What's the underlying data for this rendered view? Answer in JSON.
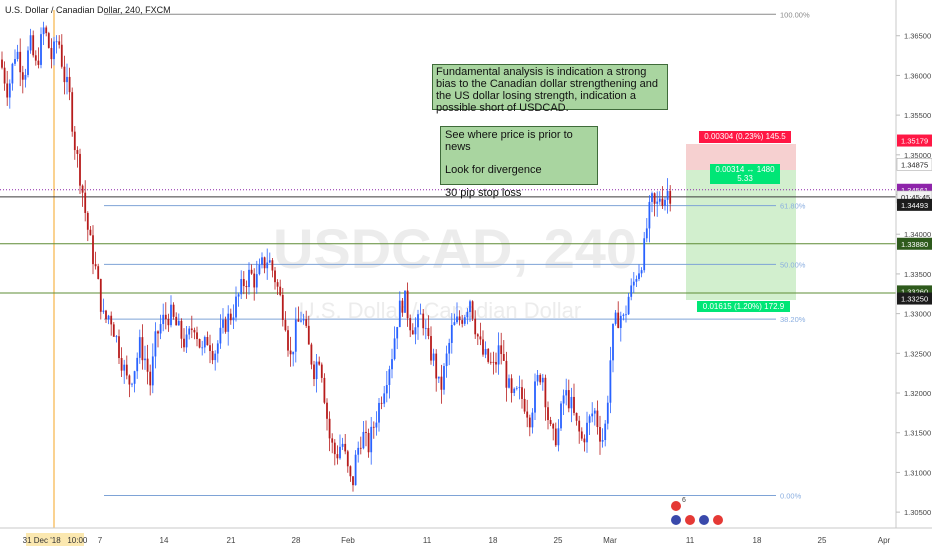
{
  "header": {
    "symbol_title": "U.S. Dollar / Canadian Dollar, 240, FXCM"
  },
  "watermark": {
    "main": "USDCAD, 240",
    "sub": "U.S. Dollar / Canadian Dollar"
  },
  "annotations": {
    "fundamental": "Fundamental analysis is indication a strong bias to the Canadian dollar strengthening and the US dollar losing strength, indication a possible short of USDCAD.",
    "checklist": [
      "See where price is prior to news",
      "Look for divergence",
      "30 pip stop loss"
    ]
  },
  "position": {
    "stop_label": "0.00304 (0.23%) 145.5",
    "entry_label_line1": "0.00314 ↔ 1480",
    "entry_label_line2": "5.33",
    "target_label": "0.01615 (1.20%) 172.9",
    "entry": 1.3487,
    "stop": 1.3518,
    "target": 1.3325
  },
  "colors": {
    "bull": "#2962ff",
    "bear": "#b71c1c",
    "fib": "#7ea3d6",
    "fib_label": "#8aaee0",
    "green_line": "#5e8c35",
    "purple_line": "#8e24aa",
    "red_tag": "#ff1744",
    "green_tag": "#00e676",
    "profit_zone": "#d2efce",
    "loss_zone": "#f6d0d0"
  },
  "chart_data": {
    "type": "candlestick",
    "ylim": [
      1.303,
      1.3695
    ],
    "y_ticks": [
      1.305,
      1.31,
      1.315,
      1.32,
      1.325,
      1.33,
      1.335,
      1.34,
      1.345,
      1.35,
      1.355,
      1.36,
      1.365
    ],
    "x_ticks": [
      "7",
      "14",
      "21",
      "28",
      "Feb",
      "11",
      "18",
      "25",
      "Mar",
      "11",
      "18",
      "25",
      "Apr"
    ],
    "x_marker_label": "31 Dec '18   10:00",
    "fib_levels": [
      {
        "label": "100.00%",
        "price": 1.3677
      },
      {
        "label": "61.80%",
        "price": 1.3436
      },
      {
        "label": "50.00%",
        "price": 1.3362
      },
      {
        "label": "38.20%",
        "price": 1.3293
      },
      {
        "label": "0.00%",
        "price": 1.3071
      }
    ],
    "horizontal_lines": [
      {
        "price": 1.3456,
        "style": "purple-dotted"
      },
      {
        "price": 1.3388,
        "style": "green"
      },
      {
        "price": 1.3326,
        "style": "green"
      }
    ],
    "price_tags": [
      {
        "label": "1.35179",
        "price": 1.3518,
        "color": "#ff1744"
      },
      {
        "label": "1.34875",
        "price": 1.3488,
        "color": "#ffffff"
      },
      {
        "label": "1.34561",
        "price": 1.3456,
        "color": "#8e24aa"
      },
      {
        "label": "01:45:45",
        "price": 1.3447,
        "color": "#f2f2f2"
      },
      {
        "label": "1.34493",
        "price": 1.3437,
        "color": "#1c1c1c"
      },
      {
        "label": "1.33880",
        "price": 1.3388,
        "color": "#2e5a1c"
      },
      {
        "label": "1.33260",
        "price": 1.3328,
        "color": "#2e5a1c"
      },
      {
        "label": "1.33250",
        "price": 1.3319,
        "color": "#1c1c1c"
      }
    ],
    "price_path": [
      [
        0,
        1.362
      ],
      [
        8,
        1.358
      ],
      [
        16,
        1.3635
      ],
      [
        24,
        1.36
      ],
      [
        30,
        1.364
      ],
      [
        36,
        1.361
      ],
      [
        44,
        1.366
      ],
      [
        52,
        1.362
      ],
      [
        58,
        1.365
      ],
      [
        64,
        1.36
      ],
      [
        70,
        1.357
      ],
      [
        74,
        1.352
      ],
      [
        78,
        1.349
      ],
      [
        82,
        1.346
      ],
      [
        86,
        1.342
      ],
      [
        90,
        1.339
      ],
      [
        95,
        1.336
      ],
      [
        100,
        1.332
      ],
      [
        104,
        1.329
      ],
      [
        110,
        1.33
      ],
      [
        116,
        1.327
      ],
      [
        122,
        1.324
      ],
      [
        128,
        1.321
      ],
      [
        134,
        1.323
      ],
      [
        140,
        1.326
      ],
      [
        146,
        1.324
      ],
      [
        150,
        1.321
      ],
      [
        156,
        1.327
      ],
      [
        162,
        1.329
      ],
      [
        170,
        1.33
      ],
      [
        178,
        1.328
      ],
      [
        186,
        1.326
      ],
      [
        194,
        1.329
      ],
      [
        202,
        1.325
      ],
      [
        208,
        1.327
      ],
      [
        214,
        1.325
      ],
      [
        220,
        1.327
      ],
      [
        226,
        1.329
      ],
      [
        232,
        1.33
      ],
      [
        238,
        1.332
      ],
      [
        244,
        1.334
      ],
      [
        250,
        1.335
      ],
      [
        256,
        1.334
      ],
      [
        262,
        1.336
      ],
      [
        268,
        1.337
      ],
      [
        274,
        1.335
      ],
      [
        280,
        1.332
      ],
      [
        286,
        1.329
      ],
      [
        290,
        1.324
      ],
      [
        296,
        1.328
      ],
      [
        302,
        1.33
      ],
      [
        308,
        1.326
      ],
      [
        314,
        1.323
      ],
      [
        320,
        1.325
      ],
      [
        326,
        1.318
      ],
      [
        330,
        1.314
      ],
      [
        336,
        1.312
      ],
      [
        342,
        1.314
      ],
      [
        348,
        1.31
      ],
      [
        352,
        1.308
      ],
      [
        356,
        1.312
      ],
      [
        362,
        1.315
      ],
      [
        368,
        1.313
      ],
      [
        374,
        1.316
      ],
      [
        380,
        1.319
      ],
      [
        386,
        1.322
      ],
      [
        392,
        1.325
      ],
      [
        398,
        1.33
      ],
      [
        404,
        1.332
      ],
      [
        410,
        1.329
      ],
      [
        416,
        1.328
      ],
      [
        422,
        1.33
      ],
      [
        428,
        1.326
      ],
      [
        434,
        1.324
      ],
      [
        440,
        1.32
      ],
      [
        446,
        1.324
      ],
      [
        452,
        1.328
      ],
      [
        458,
        1.329
      ],
      [
        464,
        1.33
      ],
      [
        470,
        1.332
      ],
      [
        476,
        1.328
      ],
      [
        482,
        1.325
      ],
      [
        488,
        1.324
      ],
      [
        494,
        1.323
      ],
      [
        500,
        1.326
      ],
      [
        506,
        1.322
      ],
      [
        512,
        1.319
      ],
      [
        518,
        1.32
      ],
      [
        524,
        1.319
      ],
      [
        530,
        1.317
      ],
      [
        536,
        1.321
      ],
      [
        542,
        1.323
      ],
      [
        548,
        1.317
      ],
      [
        552,
        1.314
      ],
      [
        558,
        1.315
      ],
      [
        564,
        1.32
      ],
      [
        570,
        1.319
      ],
      [
        576,
        1.316
      ],
      [
        582,
        1.314
      ],
      [
        588,
        1.316
      ],
      [
        594,
        1.318
      ],
      [
        600,
        1.315
      ],
      [
        604,
        1.314
      ],
      [
        608,
        1.32
      ],
      [
        612,
        1.327
      ],
      [
        616,
        1.329
      ],
      [
        620,
        1.33
      ],
      [
        624,
        1.329
      ],
      [
        628,
        1.332
      ],
      [
        632,
        1.333
      ],
      [
        636,
        1.335
      ],
      [
        640,
        1.336
      ],
      [
        644,
        1.338
      ],
      [
        648,
        1.342
      ],
      [
        652,
        1.344
      ],
      [
        656,
        1.343
      ],
      [
        660,
        1.345
      ],
      [
        664,
        1.3445
      ],
      [
        668,
        1.3455
      ],
      [
        672,
        1.345
      ]
    ]
  }
}
